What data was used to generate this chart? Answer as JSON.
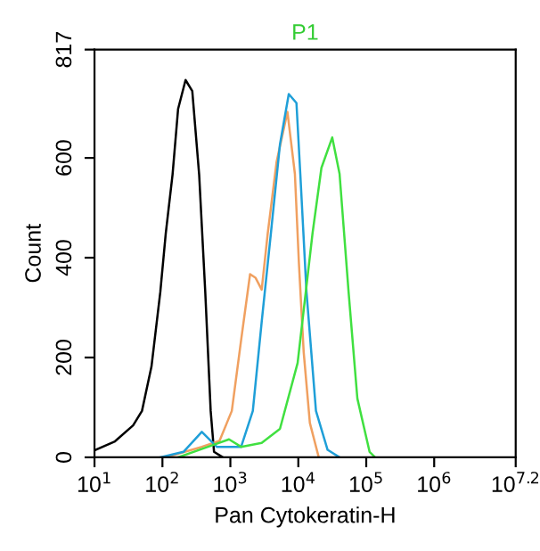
{
  "chart_data": {
    "type": "line",
    "title": "P1",
    "xlabel": "Pan Cytokeratin-H",
    "ylabel": "Count",
    "log": "x",
    "xlim": [
      10,
      15848932
    ],
    "ylim": [
      0,
      817
    ],
    "xticks": [
      {
        "value": 10,
        "label": "10$^{1}$"
      },
      {
        "value": 100,
        "label": "10$^{2}$"
      },
      {
        "value": 1000,
        "label": "10$^{3}$"
      },
      {
        "value": 10000,
        "label": "10$^{4}$"
      },
      {
        "value": 100000,
        "label": "10$^{5}$"
      },
      {
        "value": 1000000,
        "label": "10$^{6}$"
      },
      {
        "value": 15848932,
        "label": "10$^{7.2}$"
      }
    ],
    "yticks": [
      0,
      200,
      400,
      600,
      817
    ],
    "grid": false,
    "legend": false,
    "marker": "none",
    "line_style": "solid",
    "series": [
      {
        "color": "#000000",
        "x": [
          10,
          20,
          37,
          50,
          69,
          93,
          112,
          141,
          170,
          219,
          275,
          347,
          427,
          513,
          575,
          776
        ],
        "values": [
          14,
          32,
          64,
          93,
          182,
          331,
          449,
          567,
          698,
          756,
          734,
          567,
          331,
          93,
          11,
          0
        ]
      },
      {
        "color": "#f0a060",
        "x": [
          112,
          380,
          692,
          1050,
          1440,
          1950,
          2340,
          2890,
          3550,
          4790,
          6920,
          8910,
          10200,
          12000,
          14800,
          20000
        ],
        "values": [
          0,
          21,
          33,
          93,
          235,
          367,
          360,
          336,
          449,
          592,
          692,
          568,
          390,
          211,
          69,
          0
        ]
      },
      {
        "color": "#1f9fd8",
        "x": [
          93,
          204,
          380,
          631,
          1440,
          2140,
          2890,
          3950,
          5370,
          7240,
          9390,
          10700,
          13200,
          18200,
          27000,
          40500
        ],
        "values": [
          0,
          11,
          51,
          21,
          21,
          93,
          271,
          449,
          627,
          728,
          710,
          568,
          331,
          93,
          15,
          0
        ]
      },
      {
        "color": "#40e040",
        "x": [
          170,
          468,
          955,
          1440,
          2890,
          5370,
          9770,
          16200,
          21900,
          31600,
          40500,
          55000,
          74000,
          112000,
          135000
        ],
        "values": [
          0,
          21,
          36,
          21,
          29,
          57,
          189,
          449,
          580,
          641,
          568,
          331,
          118,
          11,
          0
        ]
      }
    ]
  }
}
